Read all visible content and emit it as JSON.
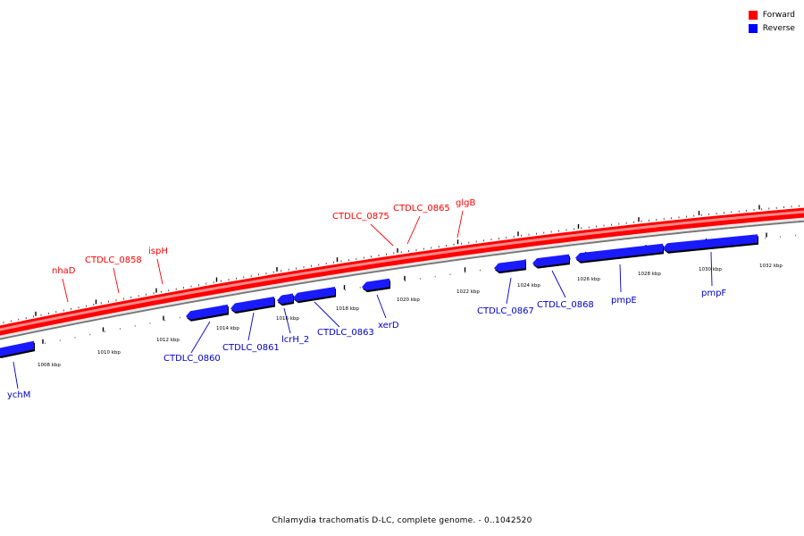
{
  "legend": {
    "forward_label": "Forward",
    "forward_color": "#ff0000",
    "reverse_label": "Reverse",
    "reverse_color": "#0000ff"
  },
  "footer": {
    "title": "Chlamydia trachomatis D-LC, complete genome. - 0..1042520"
  },
  "axis_ticks": [
    "1008 kbp",
    "1010 kbp",
    "1012 kbp",
    "1014 kbp",
    "1016 kbp",
    "1018 kbp",
    "1020 kbp",
    "1022 kbp",
    "1024 kbp",
    "1026 kbp",
    "1028 kbp",
    "1030 kbp",
    "1032 kbp"
  ],
  "forward_genes": [
    "nhaD",
    "CTDLC_0858",
    "ispH",
    "CTDLC_0875",
    "CTDLC_0865",
    "glgB"
  ],
  "reverse_genes": [
    "ychM",
    "CTDLC_0860",
    "CTDLC_0861",
    "lcrH_2",
    "CTDLC_0863",
    "xerD",
    "CTDLC_0867",
    "CTDLC_0868",
    "pmpE",
    "pmpF"
  ]
}
